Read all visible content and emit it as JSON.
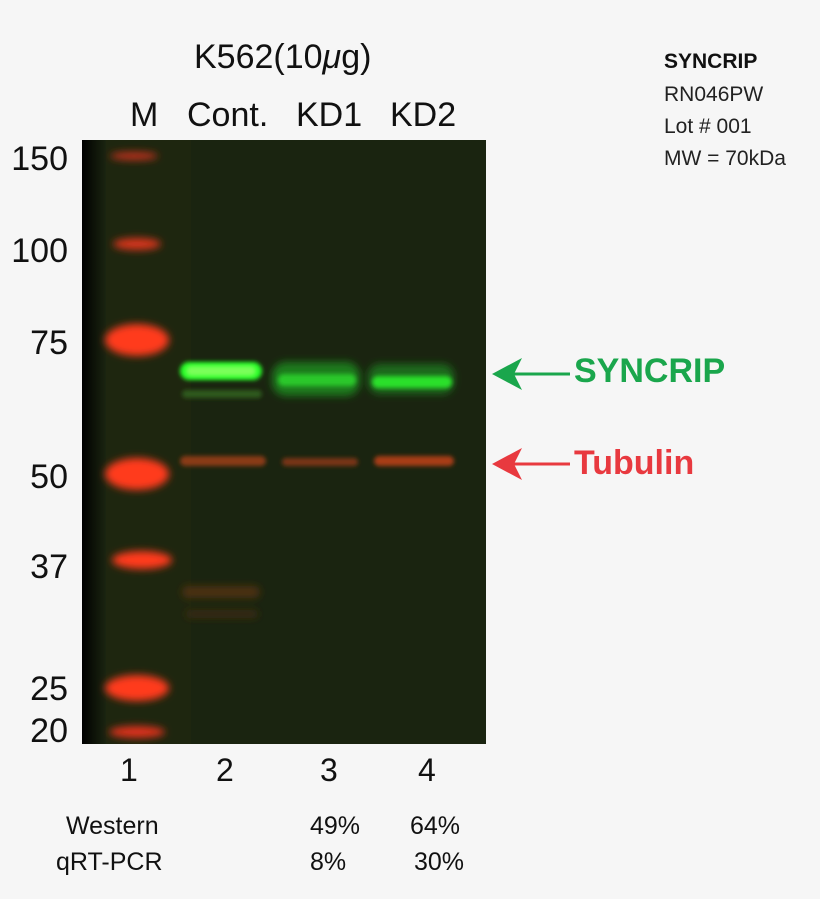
{
  "header": {
    "title_prefix": "K562(10",
    "title_mu": "μ",
    "title_suffix": "g)",
    "lanes": [
      "M",
      "Cont.",
      "KD1",
      "KD2"
    ]
  },
  "info": {
    "antibody": "SYNCRIP",
    "catalog": "RN046PW",
    "lot": "Lot # 001",
    "mw": "MW = 70kDa"
  },
  "markers": [
    "150",
    "100",
    "75",
    "50",
    "37",
    "25",
    "20"
  ],
  "lane_numbers": [
    "1",
    "2",
    "3",
    "4"
  ],
  "bands": {
    "target_label": "SYNCRIP",
    "loading_label": "Tubulin",
    "target_color": "#1aa64c",
    "loading_color": "#e8393f"
  },
  "quant": {
    "western_label": "Western",
    "qrt_label": "qRT-PCR",
    "western": [
      "49%",
      "64%"
    ],
    "qrt": [
      "8%",
      "30%"
    ]
  }
}
